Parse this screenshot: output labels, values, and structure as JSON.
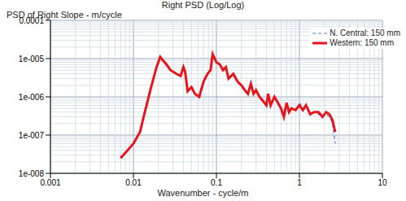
{
  "chart_data": {
    "type": "line",
    "title": "Right PSD (Log/Log)",
    "y_label": "PSD of Right Slope - m/cycle",
    "x_label": "Wavenumber - cycle/m",
    "log": true,
    "grid": true,
    "legend": "upper right",
    "xlim": [
      0.001,
      10
    ],
    "xticks": [
      0.001,
      0.01,
      0.1,
      1,
      10
    ],
    "ylim": [
      1e-08,
      0.0001
    ],
    "yticks": [
      {
        "value": 1e-08,
        "label": "1e-008"
      },
      {
        "value": 1e-07,
        "label": "1e-007"
      },
      {
        "value": 1e-06,
        "label": "1e-006"
      },
      {
        "value": 1e-05,
        "label": "1e-005"
      },
      0.0001
    ],
    "x": [
      0.007,
      0.0085,
      0.01,
      0.012,
      0.013,
      0.016,
      0.019,
      0.021,
      0.025,
      0.028,
      0.033,
      0.037,
      0.04,
      0.042,
      0.045,
      0.05,
      0.055,
      0.062,
      0.07,
      0.078,
      0.085,
      0.09,
      0.1,
      0.11,
      0.12,
      0.13,
      0.14,
      0.16,
      0.18,
      0.2,
      0.22,
      0.24,
      0.26,
      0.28,
      0.3,
      0.33,
      0.36,
      0.4,
      0.42,
      0.45,
      0.5,
      0.55,
      0.6,
      0.65,
      0.7,
      0.75,
      0.8,
      0.9,
      1.0,
      1.1,
      1.2,
      1.35,
      1.5,
      1.7,
      1.9,
      2.1,
      2.3,
      2.5,
      2.7
    ],
    "series": [
      {
        "name": "N. Central: 150 mm",
        "color": "#4a7fd4",
        "line_style": "dashed",
        "values": [
          2.5e-08,
          4e-08,
          6e-08,
          1.2e-07,
          2.5e-07,
          1.5e-06,
          6e-06,
          1.1e-05,
          7e-06,
          5e-06,
          4e-06,
          3.5e-06,
          6e-06,
          4.5e-06,
          1.4e-06,
          1.8e-06,
          1.2e-06,
          1e-06,
          2.5e-06,
          4e-06,
          5e-06,
          1.3e-05,
          8e-06,
          7e-06,
          5e-06,
          6e-06,
          3e-06,
          4e-06,
          2.5e-06,
          2e-06,
          1.5e-06,
          1.2e-06,
          2.2e-06,
          1.2e-06,
          1.5e-06,
          1e-06,
          8e-07,
          6e-07,
          1.2e-06,
          6e-07,
          1e-06,
          7e-07,
          5e-07,
          3e-07,
          7e-07,
          4e-07,
          5e-07,
          4.5e-07,
          7e-07,
          5e-07,
          6e-07,
          3.5e-07,
          4e-07,
          3.5e-07,
          3e-07,
          3.5e-07,
          3e-07,
          2e-07,
          6e-08
        ]
      },
      {
        "name": "Western: 150 mm",
        "color": "#e8141c",
        "line_style": "solid",
        "values": [
          2.5e-08,
          4e-08,
          6e-08,
          1.2e-07,
          2.5e-07,
          1.5e-06,
          6e-06,
          1.1e-05,
          7e-06,
          5e-06,
          4e-06,
          3.5e-06,
          6e-06,
          4.5e-06,
          1.4e-06,
          1.8e-06,
          1.2e-06,
          1e-06,
          2.5e-06,
          4e-06,
          5e-06,
          1.3e-05,
          8e-06,
          7e-06,
          5e-06,
          6e-06,
          3e-06,
          4e-06,
          2.5e-06,
          2e-06,
          1.5e-06,
          1.2e-06,
          2.2e-06,
          1.2e-06,
          1.5e-06,
          1e-06,
          8e-07,
          6e-07,
          1.2e-06,
          6e-07,
          1e-06,
          7e-07,
          5e-07,
          3e-07,
          7e-07,
          4e-07,
          5e-07,
          4.5e-07,
          6e-07,
          4.5e-07,
          6e-07,
          3.5e-07,
          4e-07,
          4e-07,
          3e-07,
          4e-07,
          3.5e-07,
          2.5e-07,
          1.2e-07
        ]
      }
    ]
  }
}
